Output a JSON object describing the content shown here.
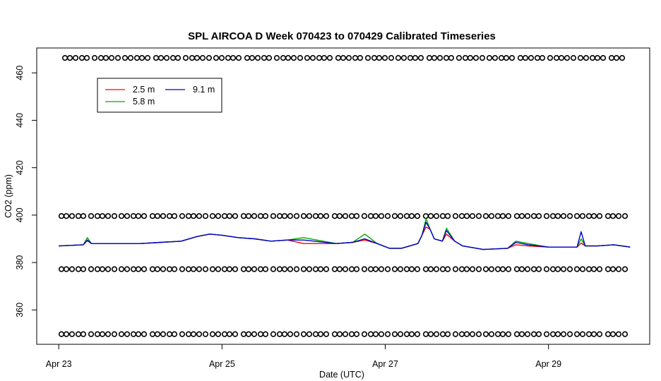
{
  "chart_data": {
    "type": "line",
    "title": "SPL AIRCOA D  Week 070423 to 070429  Calibrated Timeseries",
    "xlabel": "Date (UTC)",
    "ylabel": "CO2 (ppm)",
    "xlim": [
      -0.27,
      7.24
    ],
    "ylim": [
      345.5,
      470.5
    ],
    "x_ticks": [
      {
        "value": 0,
        "label": "Apr 23"
      },
      {
        "value": 2,
        "label": "Apr 25"
      },
      {
        "value": 4,
        "label": "Apr 27"
      },
      {
        "value": 6,
        "label": "Apr 29"
      }
    ],
    "y_ticks": [
      {
        "value": 360,
        "label": "360"
      },
      {
        "value": 380,
        "label": "380"
      },
      {
        "value": 400,
        "label": "400"
      },
      {
        "value": 420,
        "label": "420"
      },
      {
        "value": 440,
        "label": "440"
      },
      {
        "value": 460,
        "label": "460"
      }
    ],
    "legend": {
      "position": "top-left",
      "entries": [
        {
          "label": "2.5 m",
          "color": "#ff0000"
        },
        {
          "label": "5.8 m",
          "color": "#00aa00"
        },
        {
          "label": "9.1 m",
          "color": "#0000cc"
        }
      ]
    },
    "series": [
      {
        "name": "2.5 m",
        "color": "#ff0000",
        "x": [
          0,
          0.3,
          0.35,
          0.4,
          0.5,
          0.75,
          1.0,
          1.25,
          1.5,
          1.7,
          1.85,
          2.0,
          2.2,
          2.4,
          2.6,
          2.8,
          3.0,
          3.4,
          3.6,
          3.75,
          3.9,
          4.05,
          4.2,
          4.3,
          4.4,
          4.45,
          4.5,
          4.55,
          4.6,
          4.7,
          4.75,
          4.85,
          4.95,
          5.2,
          5.5,
          5.6,
          5.75,
          6.0,
          6.35,
          6.4,
          6.45,
          6.6,
          6.8,
          7.0
        ],
        "y": [
          387,
          387.5,
          389.2,
          388,
          388,
          388,
          388,
          388.5,
          389,
          391,
          392,
          391.5,
          390.5,
          390,
          389,
          389.5,
          388,
          388,
          388.5,
          389.5,
          388,
          386,
          386,
          387,
          388,
          391.5,
          395,
          394,
          390,
          389,
          392,
          389,
          387,
          385.5,
          386,
          387.5,
          387,
          386.5,
          386.5,
          388.2,
          387,
          387,
          387.5,
          386.5
        ]
      },
      {
        "name": "5.8 m",
        "color": "#00aa00",
        "x": [
          0,
          0.3,
          0.35,
          0.4,
          0.5,
          0.75,
          1.0,
          1.25,
          1.5,
          1.7,
          1.85,
          2.0,
          2.2,
          2.4,
          2.6,
          2.8,
          3.0,
          3.4,
          3.6,
          3.75,
          3.9,
          4.05,
          4.2,
          4.3,
          4.4,
          4.45,
          4.5,
          4.55,
          4.6,
          4.7,
          4.75,
          4.85,
          4.95,
          5.2,
          5.5,
          5.6,
          5.75,
          6.0,
          6.35,
          6.4,
          6.45,
          6.6,
          6.8,
          7.0
        ],
        "y": [
          387,
          387.5,
          390.5,
          388,
          388,
          388,
          388,
          388.5,
          389,
          391,
          392,
          391.5,
          390.5,
          390,
          389,
          389.5,
          390.5,
          388,
          388.5,
          392,
          388,
          386,
          386,
          387,
          388,
          391.5,
          398.5,
          394,
          390,
          389,
          394.5,
          389,
          387,
          385.5,
          386,
          389,
          388,
          386.5,
          386.5,
          390,
          387,
          387,
          387.5,
          386.5
        ]
      },
      {
        "name": "9.1 m",
        "color": "#0000cc",
        "x": [
          0,
          0.3,
          0.35,
          0.4,
          0.5,
          0.75,
          1.0,
          1.25,
          1.5,
          1.7,
          1.85,
          2.0,
          2.2,
          2.4,
          2.6,
          2.8,
          3.0,
          3.4,
          3.6,
          3.75,
          3.9,
          4.05,
          4.2,
          4.3,
          4.4,
          4.45,
          4.5,
          4.55,
          4.6,
          4.7,
          4.75,
          4.85,
          4.95,
          5.2,
          5.5,
          5.6,
          5.75,
          6.0,
          6.35,
          6.4,
          6.45,
          6.6,
          6.8,
          7.0
        ],
        "y": [
          387,
          387.5,
          389.5,
          388,
          388,
          388,
          388,
          388.5,
          389,
          391,
          392,
          391.5,
          390.5,
          390,
          389,
          389.5,
          389.5,
          388,
          388.5,
          390,
          388,
          386,
          386,
          387,
          388,
          391.5,
          397,
          394,
          390,
          389,
          393.5,
          389,
          387,
          385.5,
          386,
          388.5,
          387.5,
          386.5,
          386.5,
          393,
          387,
          387,
          387.5,
          386.5
        ]
      }
    ],
    "flag_rows_y": [
      349.8,
      377.2,
      399.6,
      466.3
    ]
  }
}
